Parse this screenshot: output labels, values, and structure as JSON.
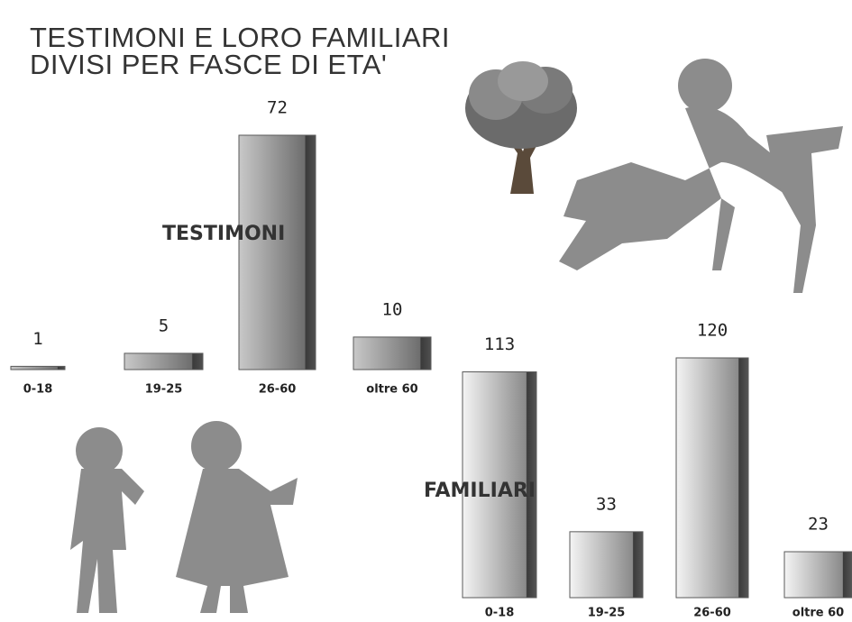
{
  "title": [
    "TESTIMONI E LORO FAMILIARI",
    "DIVISI PER FASCE DI ETA'"
  ],
  "chart_data": [
    {
      "type": "bar",
      "title": "TESTIMONI",
      "categories": [
        "0-18",
        "19-25",
        "26-60",
        "oltre 60"
      ],
      "values": [
        1,
        5,
        72,
        10
      ],
      "color": "#5a5a5a"
    },
    {
      "type": "bar",
      "title": "FAMILIARI",
      "categories": [
        "0-18",
        "19-25",
        "26-60",
        "oltre 60"
      ],
      "values": [
        113,
        33,
        120,
        23
      ],
      "color": "#5a5a5a"
    }
  ]
}
